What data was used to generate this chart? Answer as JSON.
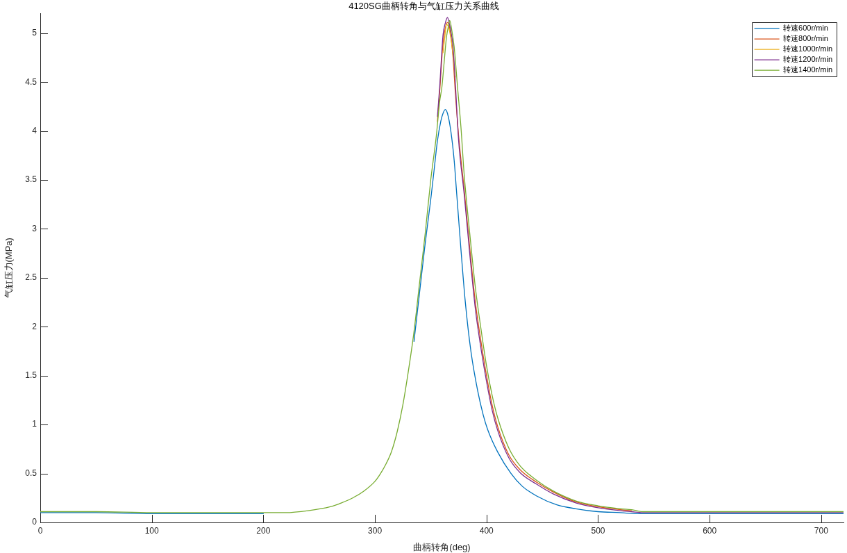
{
  "chart_data": {
    "type": "line",
    "title": "4120SG曲柄转角与气缸压力关系曲线",
    "xlabel": "曲柄转角(deg)",
    "ylabel": "气缸压力(MPa)",
    "xlim": [
      0,
      720
    ],
    "ylim": [
      0,
      5.2
    ],
    "xticks": [
      0,
      100,
      200,
      300,
      400,
      500,
      600,
      700
    ],
    "yticks": [
      0,
      0.5,
      1,
      1.5,
      2,
      2.5,
      3,
      3.5,
      4,
      4.5,
      5
    ],
    "legend": "top right",
    "series": [
      {
        "name": "转速600r/min",
        "color": "#0072bd",
        "x": [
          0,
          50,
          100,
          150,
          200,
          220,
          335,
          340,
          345,
          350,
          353,
          356,
          359,
          361,
          363,
          365,
          368,
          371,
          373,
          377,
          381,
          386,
          392,
          397,
          401,
          410,
          422,
          432,
          445,
          463,
          480,
          500,
          520,
          535,
          560,
          600,
          650,
          700,
          720
        ],
        "values": [
          0.1,
          0.1,
          0.09,
          0.09,
          0.09,
          null,
          1.85,
          2.35,
          2.85,
          3.3,
          3.6,
          3.9,
          4.1,
          4.18,
          4.22,
          4.18,
          4.0,
          3.7,
          3.4,
          2.8,
          2.25,
          1.75,
          1.35,
          1.1,
          0.95,
          0.72,
          0.5,
          0.37,
          0.27,
          0.18,
          0.14,
          0.11,
          0.1,
          0.09,
          0.09,
          0.09,
          0.09,
          0.09,
          0.09
        ]
      },
      {
        "name": "转速800r/min",
        "color": "#d95319",
        "x": [
          356,
          358,
          361,
          363,
          365,
          367,
          370,
          372,
          375,
          380,
          385,
          390,
          395,
          400,
          405,
          410,
          420,
          430,
          445,
          460,
          480,
          500,
          520,
          530
        ],
        "values": [
          4.1,
          4.4,
          4.9,
          5.05,
          5.11,
          5.05,
          4.75,
          4.4,
          3.95,
          3.4,
          2.8,
          2.25,
          1.85,
          1.5,
          1.2,
          0.98,
          0.69,
          0.54,
          0.41,
          0.31,
          0.21,
          0.16,
          0.13,
          0.12
        ]
      },
      {
        "name": "转速1000r/min",
        "color": "#edb120",
        "x": [
          361,
          363,
          364,
          366,
          368,
          370,
          372
        ],
        "values": [
          4.8,
          5.0,
          5.09,
          5.06,
          4.95,
          4.78,
          4.55
        ]
      },
      {
        "name": "转速1200r/min",
        "color": "#7e2f8e",
        "x": [
          356,
          358,
          361,
          363,
          365,
          367,
          370,
          372,
          375,
          380,
          385,
          390,
          395,
          400,
          405,
          410,
          420,
          430,
          445,
          460,
          480,
          500,
          520,
          530,
          540,
          560,
          600,
          650,
          700,
          720
        ],
        "values": [
          4.15,
          4.45,
          4.98,
          5.1,
          5.16,
          5.08,
          4.86,
          4.5,
          3.9,
          3.35,
          2.74,
          2.18,
          1.78,
          1.44,
          1.15,
          0.94,
          0.66,
          0.51,
          0.39,
          0.29,
          0.2,
          0.15,
          0.12,
          0.11,
          0.1,
          0.1,
          0.1,
          0.1,
          0.1,
          0.1
        ]
      },
      {
        "name": "转速1400r/min",
        "color": "#77ac30",
        "x": [
          0,
          50,
          100,
          150,
          200,
          220,
          240,
          260,
          270,
          280,
          290,
          300,
          305,
          310,
          315,
          320,
          325,
          330,
          335,
          340,
          345,
          350,
          355,
          358,
          360,
          362,
          364,
          366,
          367,
          369,
          371,
          374,
          377,
          380,
          385,
          390,
          395,
          400,
          405,
          410,
          420,
          430,
          445,
          460,
          480,
          500,
          520,
          530,
          540,
          560,
          600,
          650,
          700,
          720
        ],
        "values": [
          0.11,
          0.11,
          0.1,
          0.1,
          0.1,
          0.1,
          0.12,
          0.16,
          0.2,
          0.25,
          0.32,
          0.42,
          0.5,
          0.6,
          0.73,
          0.93,
          1.2,
          1.55,
          1.95,
          2.45,
          2.95,
          3.5,
          3.95,
          4.3,
          4.45,
          4.7,
          4.95,
          5.08,
          5.13,
          5.02,
          4.86,
          4.45,
          4.05,
          3.55,
          2.95,
          2.4,
          1.98,
          1.6,
          1.3,
          1.07,
          0.76,
          0.58,
          0.43,
          0.32,
          0.22,
          0.17,
          0.14,
          0.13,
          0.11,
          0.11,
          0.11,
          0.11,
          0.11,
          0.11
        ]
      }
    ]
  }
}
